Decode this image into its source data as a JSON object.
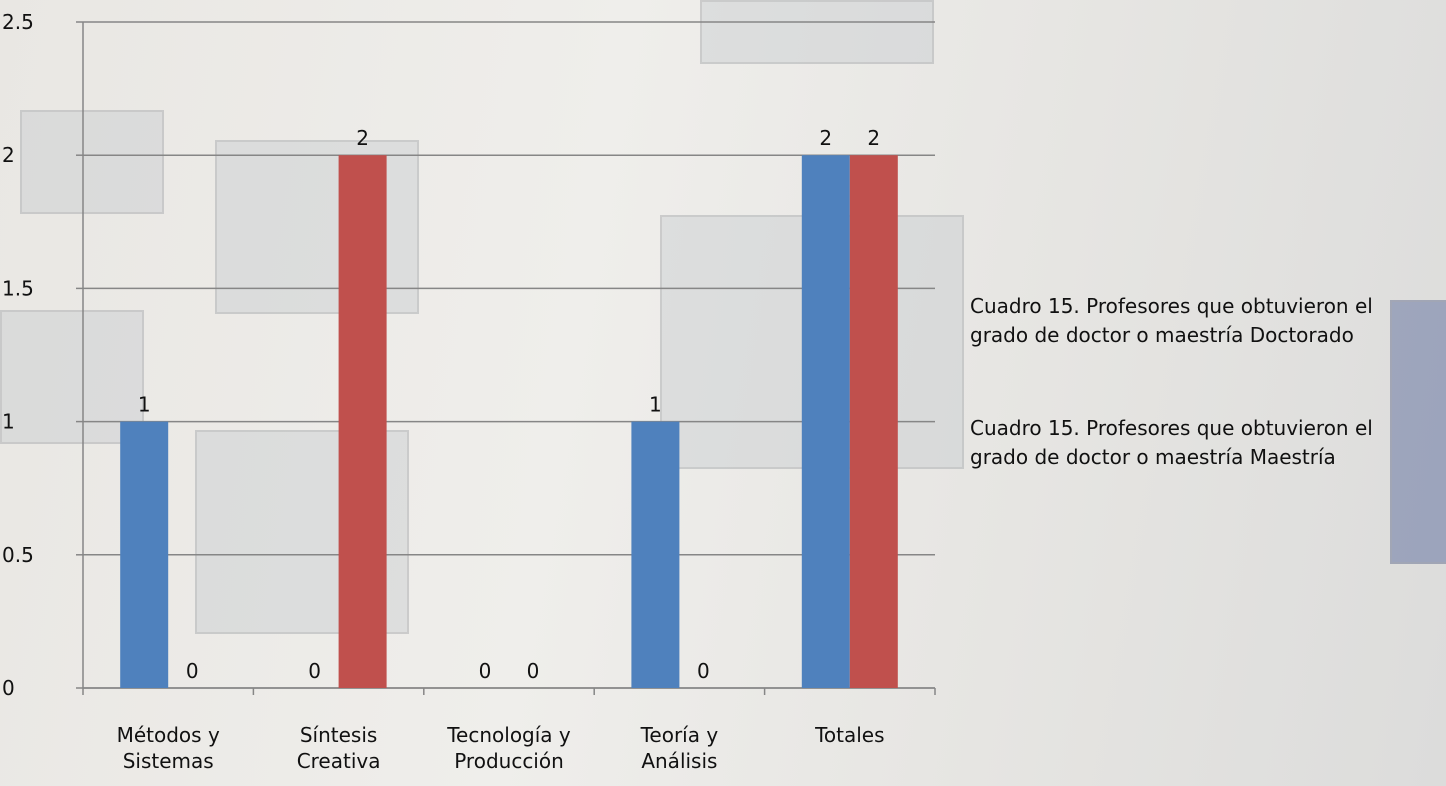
{
  "chart_data": {
    "type": "bar",
    "categories": [
      "Métodos y Sistemas",
      "Síntesis Creativa",
      "Tecnología y Producción",
      "Teoría y Análisis",
      "Totales"
    ],
    "series": [
      {
        "name": "Cuadro 15. Profesores que obtuvieron el grado de doctor o maestría Doctorado",
        "color": "#4f81bd",
        "values": [
          1,
          0,
          0,
          1,
          2
        ]
      },
      {
        "name": "Cuadro 15. Profesores que obtuvieron el grado de doctor o maestría Maestría",
        "color": "#c0504d",
        "values": [
          0,
          2,
          0,
          0,
          2
        ]
      }
    ],
    "ylim": [
      0,
      2.5
    ],
    "yticks": [
      0,
      0.5,
      1,
      1.5,
      2,
      2.5
    ],
    "grid": true,
    "legend": "right"
  }
}
